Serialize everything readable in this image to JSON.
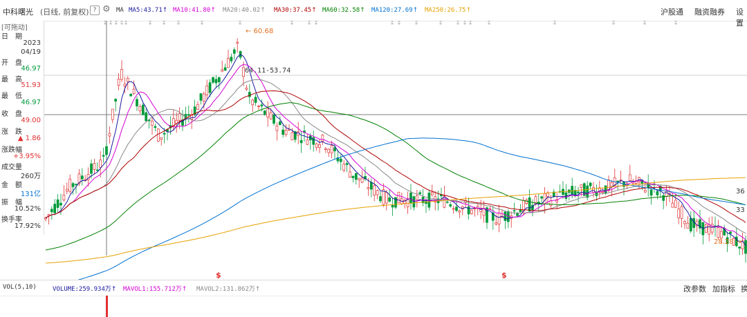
{
  "header": {
    "stock_name": "中科曙光",
    "chart_mode": "(日线, 前复权)",
    "help_label": "?",
    "ma_label": "MA",
    "ma_items": [
      {
        "label": "MA5:43.71",
        "arrow": "↑",
        "color": "#1a1aa0"
      },
      {
        "label": "MA10:41.80",
        "arrow": "↑",
        "color": "#d400d4"
      },
      {
        "label": "MA20:40.02",
        "arrow": "↑",
        "color": "#888888"
      },
      {
        "label": "MA30:37.45",
        "arrow": "↑",
        "color": "#b00000"
      },
      {
        "label": "MA60:32.58",
        "arrow": "↑",
        "color": "#008000"
      },
      {
        "label": "MA120:27.69",
        "arrow": "↑",
        "color": "#0070d0"
      },
      {
        "label": "MA250:26.75",
        "arrow": "↑",
        "color": "#e6a000"
      }
    ],
    "right_links": [
      "沪股通",
      "融资融券",
      "设置"
    ]
  },
  "info_panel": {
    "drag_label": "[可拖动]",
    "date_label": "日　期",
    "date_year": "2023",
    "date_md": "04/19",
    "open_label": "开　盘",
    "open_value": "46.97",
    "high_label": "最　高",
    "high_value": "51.93",
    "low_label": "最　低",
    "low_value": "46.97",
    "close_label": "收　盘",
    "close_value": "49.00",
    "change_label": "涨　跌",
    "change_value": "▲ 1.86",
    "pct_label": "涨跌幅",
    "pct_value": "+3.95%",
    "vol_label": "成交量",
    "vol_value": "260万",
    "amount_label": "金　额",
    "amount_value": "131亿",
    "amp_label": "振　幅",
    "amp_value": "10.52%",
    "turnover_label": "换手率",
    "turnover_value": "17.92%"
  },
  "annotations": {
    "high_marker": "60.68",
    "range_label": "64.11-53.74",
    "low_marker": "28.28",
    "right_axis_1": "36",
    "right_axis_2": "33",
    "event_marker": "$"
  },
  "volume_bar": {
    "vol_label": "VOL(5,10)",
    "volume": "VOLUME:259.934万",
    "mavol1": "MAVOL1:155.712万",
    "mavol2": "MAVOL2:131.862万",
    "arrow": "↑",
    "modify": "改参数",
    "add": "加指标",
    "switch": "换"
  },
  "colors": {
    "up": "#e03030",
    "down": "#009a3a",
    "crosshair": "#555555"
  }
}
